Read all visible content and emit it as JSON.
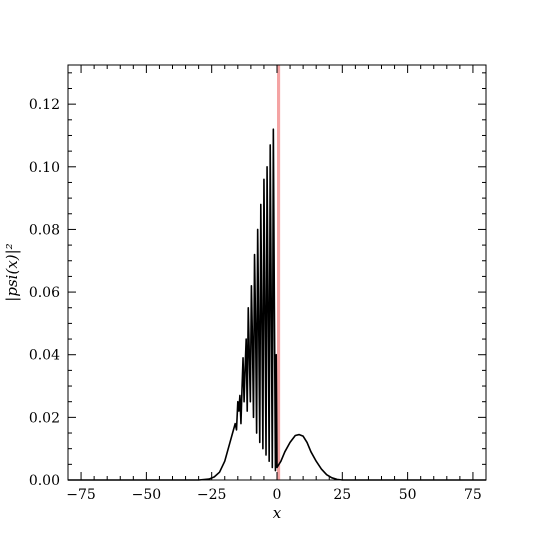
{
  "chart_data": {
    "type": "line",
    "title": "",
    "xlabel": "x",
    "ylabel": "|psi(x)|²",
    "xlim": [
      -80,
      80
    ],
    "ylim": [
      0,
      0.1325
    ],
    "x_ticks": [
      -75,
      -50,
      -25,
      0,
      25,
      50,
      75
    ],
    "x_tick_labels": [
      "−75",
      "−50",
      "−25",
      "0",
      "25",
      "50",
      "75"
    ],
    "y_ticks": [
      0.0,
      0.02,
      0.04,
      0.06,
      0.08,
      0.1,
      0.12
    ],
    "y_tick_labels": [
      "0.00",
      "0.02",
      "0.04",
      "0.06",
      "0.08",
      "0.10",
      "0.12"
    ],
    "grid": false,
    "legend": "none",
    "barrier": {
      "x_start": 0.0,
      "x_end": 1.2,
      "color": "#f4a3a3"
    },
    "series": [
      {
        "color": "#000000",
        "x": [
          -80,
          -30,
          -26,
          -24,
          -22,
          -20,
          -19,
          -18,
          -17,
          -16,
          -15.5,
          -15,
          -14.6,
          -14.2,
          -13.8,
          -13.4,
          -13,
          -12.6,
          -12.2,
          -11.8,
          -11.4,
          -11,
          -10.6,
          -10.2,
          -9.8,
          -9.4,
          -9,
          -8.6,
          -8.2,
          -7.8,
          -7.4,
          -7,
          -6.6,
          -6.2,
          -5.8,
          -5.4,
          -5,
          -4.6,
          -4.2,
          -3.8,
          -3.4,
          -3,
          -2.6,
          -2.2,
          -1.8,
          -1.4,
          -1,
          -0.6,
          -0.3,
          0,
          1.5,
          3,
          5,
          7,
          8.5,
          10,
          11.5,
          13,
          15,
          17,
          19,
          21,
          23,
          25,
          28,
          80
        ],
        "y": [
          0,
          0.0,
          0.0003,
          0.001,
          0.0025,
          0.006,
          0.009,
          0.012,
          0.015,
          0.018,
          0.016,
          0.025,
          0.022,
          0.027,
          0.018,
          0.029,
          0.039,
          0.025,
          0.036,
          0.045,
          0.022,
          0.055,
          0.04,
          0.025,
          0.062,
          0.045,
          0.02,
          0.072,
          0.05,
          0.015,
          0.08,
          0.05,
          0.012,
          0.088,
          0.052,
          0.01,
          0.096,
          0.055,
          0.008,
          0.1,
          0.055,
          0.006,
          0.107,
          0.055,
          0.004,
          0.112,
          0.055,
          0.003,
          0.04,
          0.004,
          0.006,
          0.009,
          0.012,
          0.0142,
          0.0145,
          0.014,
          0.012,
          0.009,
          0.006,
          0.0035,
          0.0017,
          0.0007,
          0.0002,
          0.0,
          0,
          0
        ]
      }
    ]
  }
}
